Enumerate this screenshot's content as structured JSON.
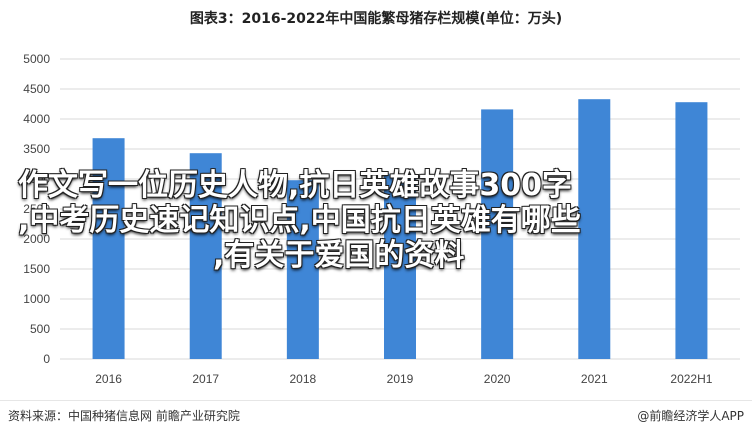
{
  "chart_data": {
    "type": "bar",
    "title": "图表3：2016-2022年中国能繁母猪存栏规模(单位：万头)",
    "categories": [
      "2016",
      "2017",
      "2018",
      "2019",
      "2020",
      "2021",
      "2022H1"
    ],
    "values": [
      3680,
      3430,
      2980,
      3080,
      4160,
      4330,
      4280
    ],
    "ylim": [
      0,
      5000
    ],
    "yticks": [
      0,
      500,
      1000,
      1500,
      2000,
      2500,
      3000,
      3500,
      4000,
      4500,
      5000
    ],
    "xlabel": "",
    "ylabel": "",
    "grid": true,
    "bar_color": "#3f86d6"
  },
  "overlay_text": {
    "line1": "作文写一位历史人物,抗日英雄故事300字",
    "line2": ",中考历史速记知识点,中国抗日英雄有哪些",
    "line3": ",有关于爱国的资料"
  },
  "footer": {
    "source": "资料来源：中国种猪信息网 前瞻产业研究院",
    "brand": "@前瞻经济学人APP"
  }
}
